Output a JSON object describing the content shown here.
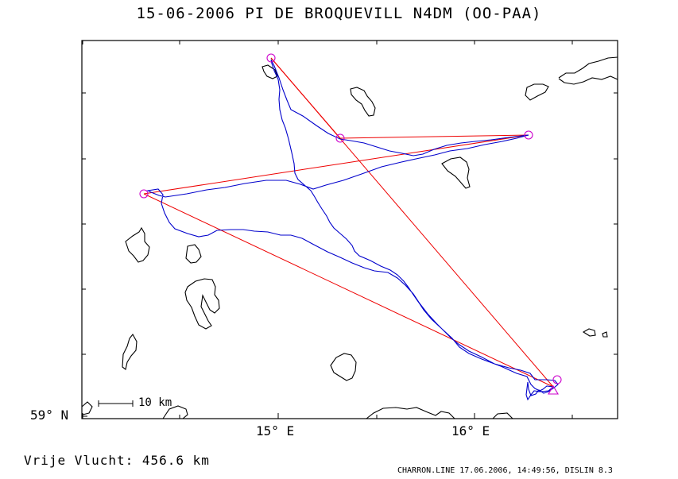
{
  "title": "15-06-2006   PI DE BROQUEVILL   N4DM (OO-PAA)",
  "axes": {
    "lat_label": "59° N",
    "lon_labels": [
      "15° E",
      "16° E"
    ]
  },
  "scale_bar": {
    "label": "10 km"
  },
  "distance_text": "Vrije Vlucht:  456.6 km",
  "footer": "CHARRON.LINE 17.06.2006, 14:49:56, DISLIN 8.3",
  "colors": {
    "frame": "#000000",
    "coastline": "#000000",
    "track": "#0000cc",
    "task_legs": "#ee0000",
    "turnpoints": "#cc00cc"
  },
  "map": {
    "turnpoints": 5,
    "start_marker": "triangle"
  }
}
